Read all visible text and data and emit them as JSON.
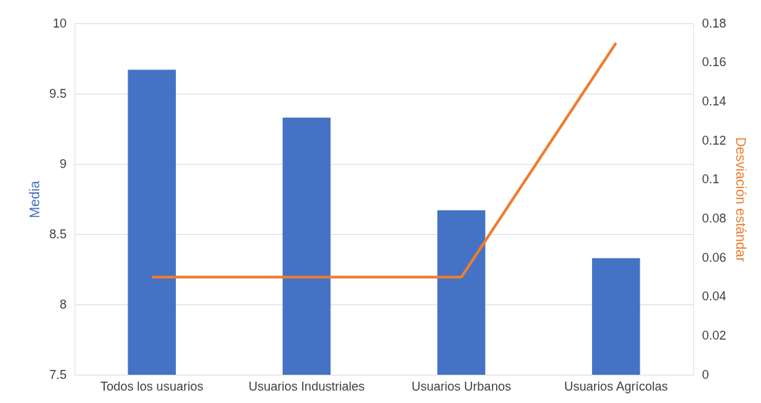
{
  "chart_data": {
    "type": "bar",
    "categories": [
      "Todos los usuarios",
      "Usuarios Industriales",
      "Usuarios Urbanos",
      "Usuarios Agrícolas"
    ],
    "ylabel": "Media",
    "y2label": "Desviación estándar",
    "series": [
      {
        "name": null,
        "color": "#4472c4",
        "values": [
          9.67,
          9.33,
          8.67,
          8.33
        ]
      },
      {
        "name": null,
        "type": "line",
        "axis": "y2",
        "color": "#ed7d31",
        "values": [
          0.05,
          0.05,
          0.05,
          0.17
        ]
      }
    ],
    "ylim": [
      7.5,
      10
    ],
    "yticks": [
      7.5,
      8,
      8.5,
      9,
      9.5,
      10
    ],
    "y2lim": [
      0,
      0.18
    ],
    "y2ticks": [
      0,
      0.02,
      0.04,
      0.06,
      0.08,
      0.1,
      0.12,
      0.14,
      0.16,
      0.18
    ],
    "grid": "y",
    "legend": false,
    "marker": "none",
    "line_style": "solid"
  }
}
